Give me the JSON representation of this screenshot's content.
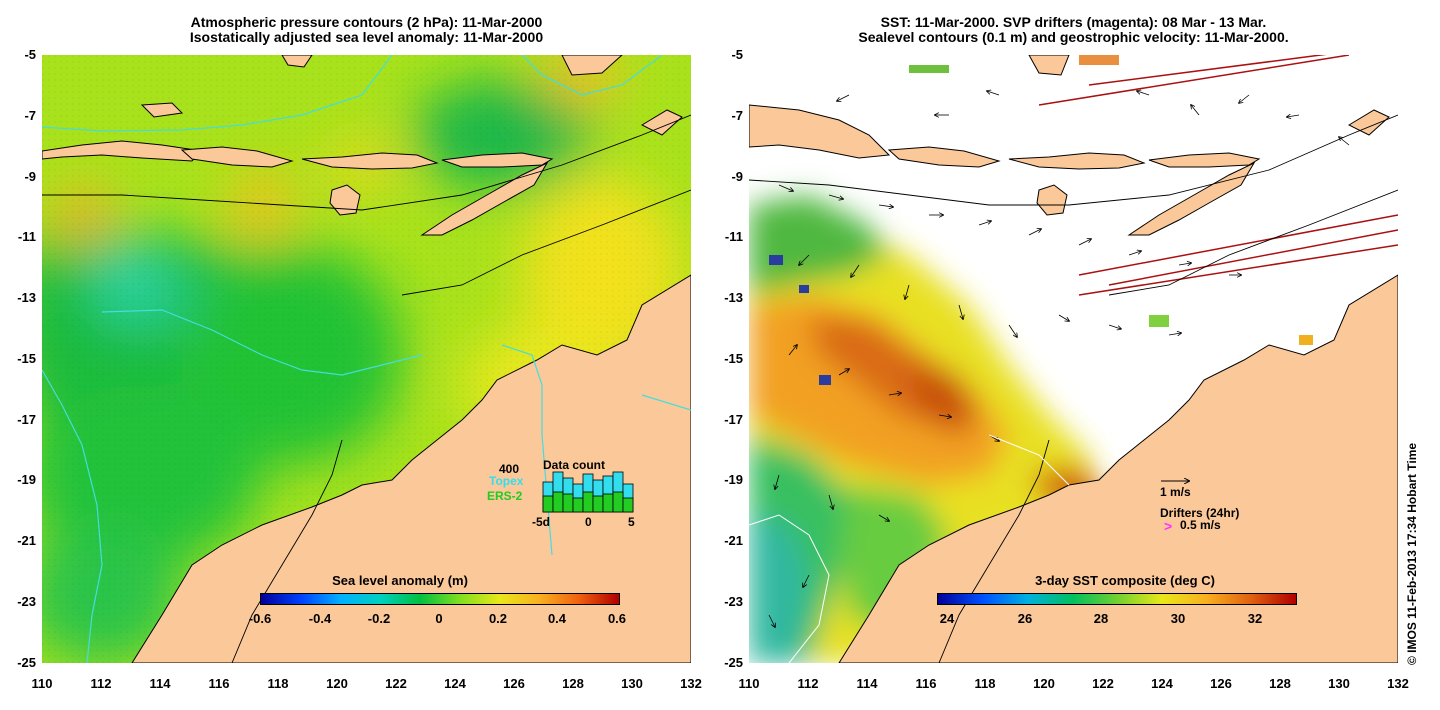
{
  "left": {
    "title_line1": "Atmospheric pressure contours (2 hPa): 11-Mar-2000",
    "title_line2": "Isostatically adjusted sea level anomaly: 11-Mar-2000",
    "colorbar_title": "Sea level anomaly (m)",
    "colorbar_labels": [
      "-0.6",
      "-0.4",
      "-0.2",
      "0",
      "0.2",
      "0.4",
      "0.6"
    ],
    "data_count": {
      "title": "Data count",
      "max_label": "400",
      "topex_label": "Topex",
      "ers2_label": "ERS-2",
      "x_labels": [
        "-5d",
        "0",
        "5"
      ],
      "topex_color": "#33ddee",
      "ers2_color": "#22cc22"
    }
  },
  "right": {
    "title_line1": "SST: 11-Mar-2000. SVP drifters (magenta): 08 Mar - 13 Mar.",
    "title_line2": "Sealevel contours (0.1 m) and geostrophic velocity: 11-Mar-2000.",
    "colorbar_title": "3-day SST composite (deg C)",
    "colorbar_labels": [
      "24",
      "26",
      "28",
      "30",
      "32"
    ],
    "velocity_label": "1 m/s",
    "drifters_label": "Drifters (24hr)",
    "drifter_speed_label": "0.5 m/s",
    "drifter_symbol": ">"
  },
  "axes": {
    "y_labels": [
      "-5",
      "-7",
      "-9",
      "-11",
      "-13",
      "-15",
      "-17",
      "-19",
      "-21",
      "-23",
      "-25"
    ],
    "x_labels": [
      "110",
      "112",
      "114",
      "116",
      "118",
      "120",
      "122",
      "124",
      "126",
      "128",
      "130",
      "132"
    ]
  },
  "copyright": "© IMOS 11-Feb-2013 17:34 Hobart Time",
  "colors": {
    "land": "#fbc89a",
    "coast": "#000000",
    "contour_cyan": "#44dddd"
  }
}
